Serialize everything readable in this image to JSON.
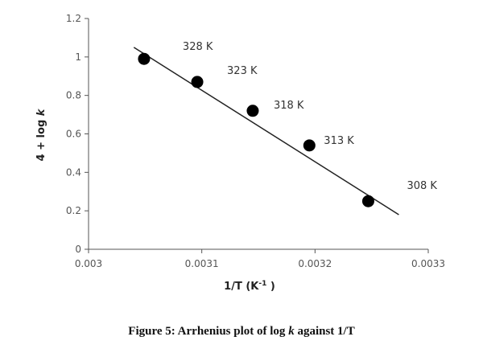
{
  "chart_data": {
    "type": "scatter",
    "x": [
      0.003049,
      0.003096,
      0.003145,
      0.003195,
      0.003247
    ],
    "y": [
      0.99,
      0.87,
      0.72,
      0.54,
      0.25
    ],
    "point_labels": [
      "328 K",
      "323 K",
      "318 K",
      "313 K",
      "308 K"
    ],
    "trendline": {
      "x": [
        0.00304,
        0.003274
      ],
      "y": [
        1.05,
        0.18
      ]
    },
    "xlim": [
      0.003,
      0.0033
    ],
    "ylim": [
      0,
      1.2
    ],
    "xticks": [
      "0.003",
      "0.0031",
      "0.0032",
      "0.0033"
    ],
    "yticks": [
      "0",
      "0.2",
      "0.4",
      "0.6",
      "0.8",
      "1",
      "1.2"
    ],
    "xlabel_main": "1/T  (K",
    "xlabel_sup": "-1",
    "xlabel_end": " )",
    "ylabel_prefix": "4 + log ",
    "ylabel_k": "k",
    "grid": false,
    "legend": "none"
  },
  "caption": {
    "prefix": "Figure 5: Arrhenius plot of log ",
    "k": "k",
    "suffix": " against 1/T"
  },
  "colors": {
    "marker": "#000000",
    "line": "#222222",
    "axis": "#555555"
  }
}
